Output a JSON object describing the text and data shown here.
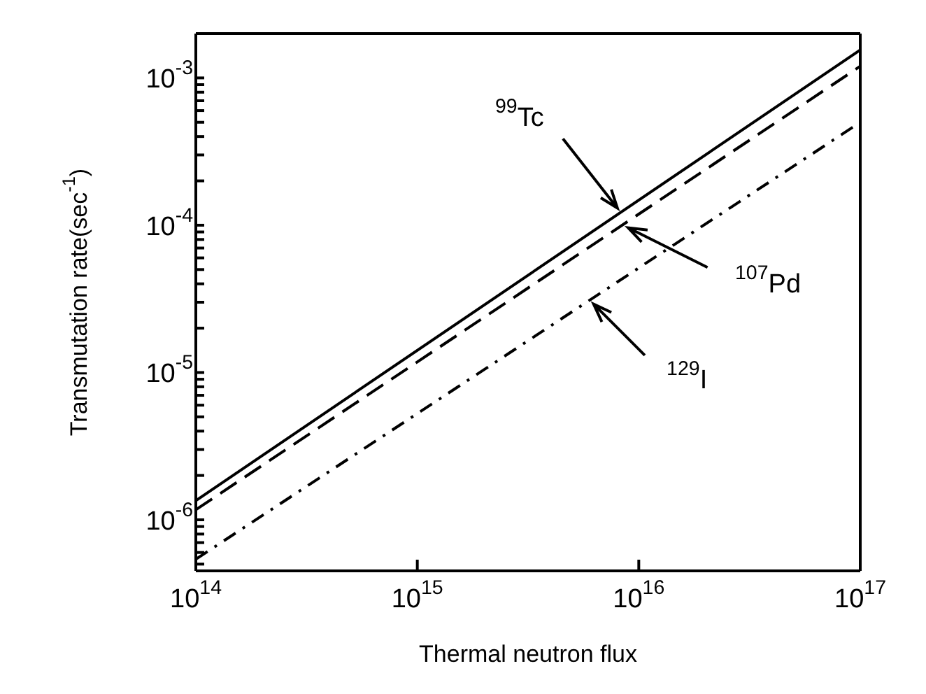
{
  "chart_data": {
    "type": "line",
    "xlabel": "Thermal neutron flux",
    "ylabel": "Transmutation rate(sec$^{-1}$)",
    "log": "xy",
    "grid": false,
    "legend": false,
    "marker": "none",
    "x": [
      100000000000000.0,
      1e+17
    ],
    "series": [
      {
        "color": "#000000",
        "line_style": "solid",
        "values": [
          1.35e-06,
          0.00155
        ]
      },
      {
        "color": "#000000",
        "line_style": "dashed",
        "values": [
          1.17e-06,
          0.0012
        ]
      },
      {
        "color": "#000000",
        "line_style": "dashdot",
        "values": [
          5.4e-07,
          0.0005
        ]
      }
    ],
    "xlim": [
      100000000000000.0,
      1e+17
    ],
    "xticks": [
      {
        "value": 100000000000000.0,
        "label": "10$^{14}$"
      },
      {
        "value": 1000000000000000.0,
        "label": "10$^{15}$"
      },
      {
        "value": 1e+16,
        "label": "10$^{16}$"
      },
      {
        "value": 1e+17,
        "label": "10$^{17}$"
      }
    ],
    "ylim": [
      4.5e-07,
      0.002
    ],
    "yticks": [
      {
        "value": 5e-07,
        "label": null
      },
      {
        "value": 6e-07,
        "label": null
      },
      {
        "value": 7e-07,
        "label": null
      },
      {
        "value": 8e-07,
        "label": null
      },
      {
        "value": 9e-07,
        "label": null
      },
      {
        "value": 1e-06,
        "label": "10$^{-6}$"
      },
      {
        "value": 2e-06,
        "label": null
      },
      {
        "value": 3e-06,
        "label": null
      },
      {
        "value": 4e-06,
        "label": null
      },
      {
        "value": 5e-06,
        "label": null
      },
      {
        "value": 6e-06,
        "label": null
      },
      {
        "value": 7e-06,
        "label": null
      },
      {
        "value": 8e-06,
        "label": null
      },
      {
        "value": 9e-06,
        "label": null
      },
      {
        "value": 1e-05,
        "label": "10$^{-5}$"
      },
      {
        "value": 2e-05,
        "label": null
      },
      {
        "value": 3e-05,
        "label": null
      },
      {
        "value": 4e-05,
        "label": null
      },
      {
        "value": 5e-05,
        "label": null
      },
      {
        "value": 6e-05,
        "label": null
      },
      {
        "value": 7e-05,
        "label": null
      },
      {
        "value": 8e-05,
        "label": null
      },
      {
        "value": 9e-05,
        "label": null
      },
      {
        "value": 0.0001,
        "label": "10$^{-4}$"
      },
      {
        "value": 0.0002,
        "label": null
      },
      {
        "value": 0.0003,
        "label": null
      },
      {
        "value": 0.0004,
        "label": null
      },
      {
        "value": 0.0005,
        "label": null
      },
      {
        "value": 0.0006,
        "label": null
      },
      {
        "value": 0.0007,
        "label": null
      },
      {
        "value": 0.0008,
        "label": null
      },
      {
        "value": 0.0009,
        "label": null
      },
      {
        "value": 0.001,
        "label": "10$^{-3}$"
      },
      {
        "value": 0.002,
        "label": null
      }
    ],
    "annotations": [
      {
        "text": "$^{99}$Tc",
        "x": 8300000000000000.0,
        "y": 0.000122
      },
      {
        "text": "$^{107}$Pd",
        "x": 8500000000000000.0,
        "y": 0.0001
      },
      {
        "text": "$^{129}$I",
        "x": 6000000000000000.0,
        "y": 3.1e-05
      }
    ]
  }
}
